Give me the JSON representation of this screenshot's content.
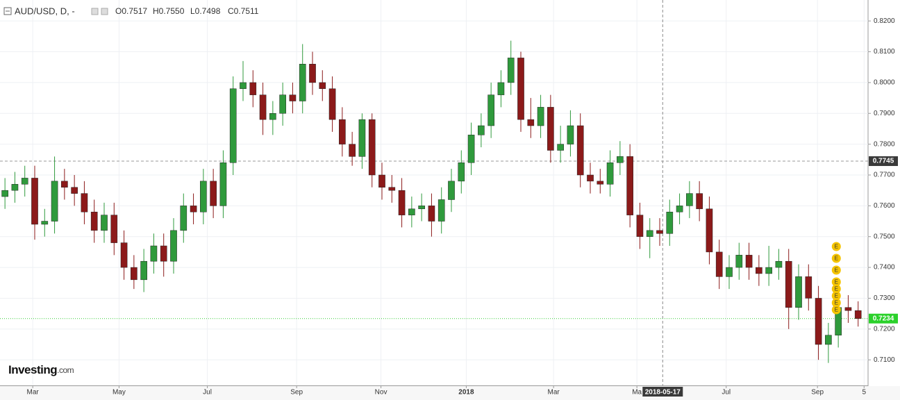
{
  "chart_data": {
    "type": "candlestick",
    "header": {
      "symbol": "AUD/USD, D, -",
      "ohlc": [
        "O0.7517",
        "H0.7550",
        "L0.7498",
        "C0.7511"
      ]
    },
    "logo": [
      "Investing",
      ".com"
    ],
    "up_color": "#2f9a3c",
    "down_color": "#8c1a1a",
    "grid": true,
    "xlim": [
      -0.5,
      87
    ],
    "xticks": [
      {
        "value": 2.8,
        "label": "Mar"
      },
      {
        "value": 11.5,
        "label": "May"
      },
      {
        "value": 20.4,
        "label": "Jul"
      },
      {
        "value": 29.4,
        "label": "Sep"
      },
      {
        "value": 37.9,
        "label": "Nov"
      },
      {
        "value": 46.5,
        "label": "2018"
      },
      {
        "value": 55.3,
        "label": "Mar"
      },
      {
        "value": 63.7,
        "label": "Ma"
      },
      {
        "value": 72.7,
        "label": "Jul"
      },
      {
        "value": 81.9,
        "label": "Sep"
      },
      {
        "value": 86.6,
        "label": "5"
      }
    ],
    "crosshair": {
      "x": {
        "value": 66.3,
        "label": "2018-05-17"
      },
      "y": {
        "value": 0.7745,
        "label": "0.7745"
      }
    },
    "last_price": {
      "value": 0.7234,
      "label": "0.7234"
    },
    "events": {
      "x": 83.8,
      "labels": [
        "E",
        "E",
        "E",
        "E",
        "E",
        "E",
        "E",
        "E"
      ]
    },
    "ylim": [
      0.7017,
      0.8268
    ],
    "yticks": [
      {
        "value": 0.71,
        "label": "0.7100"
      },
      {
        "value": 0.72,
        "label": "0.7200"
      },
      {
        "value": 0.73,
        "label": "0.7300"
      },
      {
        "value": 0.74,
        "label": "0.7400"
      },
      {
        "value": 0.75,
        "label": "0.7500"
      },
      {
        "value": 0.76,
        "label": "0.7600"
      },
      {
        "value": 0.77,
        "label": "0.7700"
      },
      {
        "value": 0.78,
        "label": "0.7800"
      },
      {
        "value": 0.79,
        "label": "0.7900"
      },
      {
        "value": 0.8,
        "label": "0.8000"
      },
      {
        "value": 0.81,
        "label": "0.8100"
      },
      {
        "value": 0.82,
        "label": "0.8200"
      }
    ],
    "open": [
      0.763,
      0.765,
      0.767,
      0.769,
      0.754,
      0.755,
      0.768,
      0.766,
      0.764,
      0.758,
      0.752,
      0.757,
      0.748,
      0.74,
      0.736,
      0.742,
      0.747,
      0.742,
      0.752,
      0.76,
      0.758,
      0.768,
      0.76,
      0.774,
      0.798,
      0.8,
      0.796,
      0.788,
      0.79,
      0.796,
      0.794,
      0.806,
      0.8,
      0.798,
      0.788,
      0.78,
      0.776,
      0.788,
      0.77,
      0.766,
      0.765,
      0.757,
      0.759,
      0.76,
      0.755,
      0.762,
      0.768,
      0.774,
      0.783,
      0.786,
      0.796,
      0.8,
      0.808,
      0.788,
      0.786,
      0.792,
      0.778,
      0.78,
      0.786,
      0.77,
      0.768,
      0.767,
      0.774,
      0.776,
      0.757,
      0.75,
      0.752,
      0.751,
      0.758,
      0.76,
      0.764,
      0.759,
      0.745,
      0.737,
      0.74,
      0.744,
      0.74,
      0.738,
      0.74,
      0.742,
      0.727,
      0.737,
      0.73,
      0.715,
      0.718,
      0.727,
      0.726
    ],
    "high": [
      0.769,
      0.771,
      0.773,
      0.773,
      0.759,
      0.776,
      0.772,
      0.77,
      0.768,
      0.762,
      0.761,
      0.761,
      0.752,
      0.744,
      0.746,
      0.751,
      0.751,
      0.756,
      0.764,
      0.764,
      0.772,
      0.772,
      0.778,
      0.802,
      0.807,
      0.804,
      0.8,
      0.794,
      0.8,
      0.8,
      0.8125,
      0.81,
      0.804,
      0.802,
      0.792,
      0.784,
      0.79,
      0.79,
      0.774,
      0.77,
      0.769,
      0.763,
      0.764,
      0.764,
      0.766,
      0.772,
      0.778,
      0.787,
      0.79,
      0.8,
      0.804,
      0.8136,
      0.81,
      0.795,
      0.796,
      0.796,
      0.786,
      0.791,
      0.79,
      0.774,
      0.772,
      0.778,
      0.781,
      0.78,
      0.761,
      0.756,
      0.756,
      0.762,
      0.764,
      0.768,
      0.768,
      0.763,
      0.749,
      0.744,
      0.748,
      0.748,
      0.744,
      0.747,
      0.746,
      0.746,
      0.741,
      0.741,
      0.734,
      0.722,
      0.731,
      0.731,
      0.729
    ],
    "low": [
      0.759,
      0.761,
      0.763,
      0.749,
      0.75,
      0.751,
      0.762,
      0.76,
      0.754,
      0.748,
      0.748,
      0.744,
      0.736,
      0.733,
      0.732,
      0.738,
      0.737,
      0.738,
      0.748,
      0.754,
      0.754,
      0.756,
      0.756,
      0.77,
      0.794,
      0.792,
      0.783,
      0.783,
      0.786,
      0.79,
      0.79,
      0.796,
      0.794,
      0.784,
      0.776,
      0.773,
      0.772,
      0.766,
      0.762,
      0.761,
      0.753,
      0.753,
      0.755,
      0.75,
      0.751,
      0.758,
      0.764,
      0.77,
      0.779,
      0.782,
      0.792,
      0.796,
      0.784,
      0.782,
      0.782,
      0.774,
      0.774,
      0.776,
      0.766,
      0.764,
      0.764,
      0.763,
      0.77,
      0.753,
      0.746,
      0.743,
      0.747,
      0.747,
      0.754,
      0.756,
      0.755,
      0.741,
      0.733,
      0.733,
      0.736,
      0.736,
      0.734,
      0.734,
      0.736,
      0.72,
      0.723,
      0.726,
      0.71,
      0.709,
      0.714,
      0.722,
      0.7208
    ],
    "close": [
      0.765,
      0.767,
      0.769,
      0.754,
      0.755,
      0.768,
      0.766,
      0.764,
      0.758,
      0.752,
      0.757,
      0.748,
      0.74,
      0.736,
      0.742,
      0.747,
      0.742,
      0.752,
      0.76,
      0.758,
      0.768,
      0.76,
      0.774,
      0.798,
      0.8,
      0.796,
      0.788,
      0.79,
      0.796,
      0.794,
      0.806,
      0.8,
      0.798,
      0.788,
      0.78,
      0.776,
      0.788,
      0.77,
      0.766,
      0.765,
      0.757,
      0.759,
      0.76,
      0.755,
      0.762,
      0.768,
      0.774,
      0.783,
      0.786,
      0.796,
      0.8,
      0.808,
      0.788,
      0.786,
      0.792,
      0.778,
      0.78,
      0.786,
      0.77,
      0.768,
      0.767,
      0.774,
      0.776,
      0.757,
      0.75,
      0.752,
      0.751,
      0.758,
      0.76,
      0.764,
      0.759,
      0.745,
      0.737,
      0.74,
      0.744,
      0.74,
      0.738,
      0.74,
      0.742,
      0.727,
      0.737,
      0.73,
      0.715,
      0.718,
      0.727,
      0.726,
      0.7234
    ]
  }
}
